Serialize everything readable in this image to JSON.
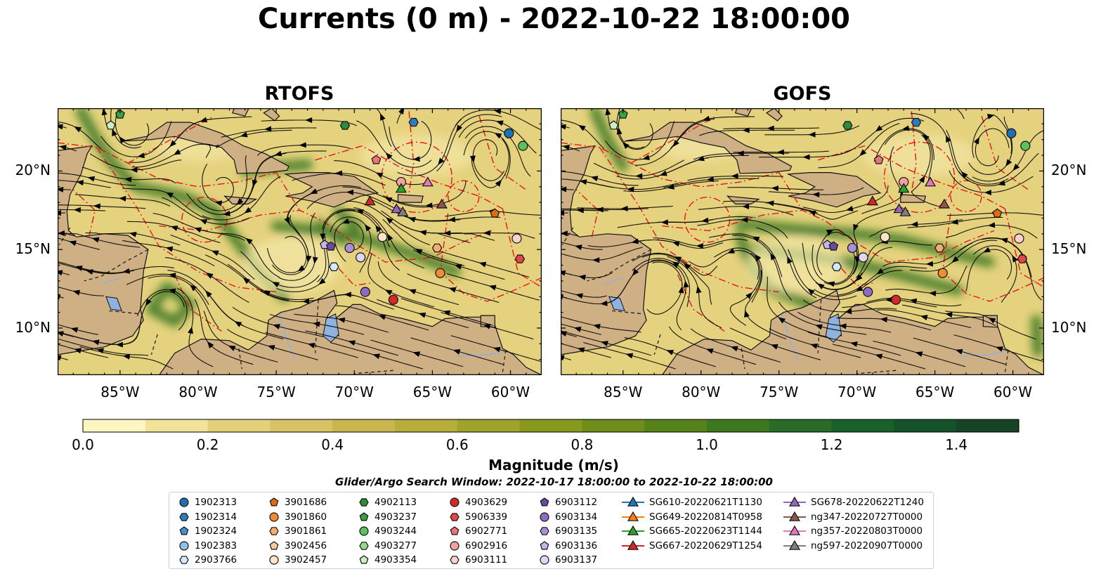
{
  "title": "Currents (0 m) - 2022-10-22 18:00:00",
  "panels": [
    {
      "title": "RTOFS"
    },
    {
      "title": "GOFS"
    }
  ],
  "map": {
    "lon_range": [
      -89,
      -58
    ],
    "lat_range": [
      7,
      24
    ],
    "lon_ticks": [
      "85°W",
      "80°W",
      "75°W",
      "70°W",
      "65°W",
      "60°W"
    ],
    "lat_ticks": [
      "20°N",
      "15°N",
      "10°N"
    ],
    "colors": {
      "land": "#cfb084",
      "water_lake": "#8fb2de",
      "eez_line": "#e8141a",
      "streamline": "#000000",
      "border": "#222222"
    }
  },
  "colorbar": {
    "label": "Magnitude (m/s)",
    "ticks": [
      "0.0",
      "0.2",
      "0.4",
      "0.6",
      "0.8",
      "1.0",
      "1.2",
      "1.4"
    ],
    "min": 0.0,
    "max": 1.5,
    "extend": "max",
    "colors": [
      "#fdf6c3",
      "#f1e39a",
      "#e3d07a",
      "#d7c264",
      "#c9b64e",
      "#b6ad3a",
      "#9fa32a",
      "#88991e",
      "#6f8d1a",
      "#558219",
      "#3d7720",
      "#286c27",
      "#1a602a",
      "#15522a",
      "#174326",
      "#1a3622",
      "#1c2a1c"
    ]
  },
  "search_window": "Glider/Argo Search Window: 2022-10-17 18:00:00 to 2022-10-22 18:00:00",
  "legend": {
    "columns": [
      [
        {
          "label": "1902313",
          "marker": "circle",
          "color": "#1f6fb4"
        },
        {
          "label": "1902314",
          "marker": "hexagon",
          "color": "#2f7bbf"
        },
        {
          "label": "1902324",
          "marker": "pentagon",
          "color": "#4a90cf"
        },
        {
          "label": "1902383",
          "marker": "circle",
          "color": "#8fc0e8"
        },
        {
          "label": "2903766",
          "marker": "hexagon",
          "color": "#d4e8f7"
        }
      ],
      [
        {
          "label": "3901686",
          "marker": "pentagon",
          "color": "#e06a0c"
        },
        {
          "label": "3901860",
          "marker": "circle",
          "color": "#f08c32"
        },
        {
          "label": "3901861",
          "marker": "hexagon",
          "color": "#f6ac6a"
        },
        {
          "label": "3902456",
          "marker": "pentagon",
          "color": "#fbcb9a"
        },
        {
          "label": "3902457",
          "marker": "circle",
          "color": "#fde3c8"
        }
      ],
      [
        {
          "label": "4902113",
          "marker": "hexagon",
          "color": "#2e8b3a"
        },
        {
          "label": "4903237",
          "marker": "pentagon",
          "color": "#3aa047"
        },
        {
          "label": "4903244",
          "marker": "circle",
          "color": "#5cc05f"
        },
        {
          "label": "4903277",
          "marker": "hexagon",
          "color": "#98d98e"
        },
        {
          "label": "4903354",
          "marker": "pentagon",
          "color": "#cdeec4"
        }
      ],
      [
        {
          "label": "4903629",
          "marker": "circle",
          "color": "#d42a25"
        },
        {
          "label": "5906339",
          "marker": "hexagon",
          "color": "#e0474a"
        },
        {
          "label": "6902771",
          "marker": "pentagon",
          "color": "#ec7479"
        },
        {
          "label": "6902916",
          "marker": "circle",
          "color": "#f4a19f"
        },
        {
          "label": "6903111",
          "marker": "hexagon",
          "color": "#fad1cf"
        }
      ],
      [
        {
          "label": "6903112",
          "marker": "pentagon",
          "color": "#6a4a9e"
        },
        {
          "label": "6903134",
          "marker": "circle",
          "color": "#8d6cc2"
        },
        {
          "label": "6903135",
          "marker": "hexagon",
          "color": "#ab8fd8"
        },
        {
          "label": "6903136",
          "marker": "pentagon",
          "color": "#c9b4e9"
        },
        {
          "label": "6903137",
          "marker": "circle",
          "color": "#e3d4f7"
        }
      ],
      [
        {
          "label": "SG610-20220621T1130",
          "marker": "triangle-line",
          "color": "#1f77b4"
        },
        {
          "label": "SG649-20220814T0958",
          "marker": "triangle-line",
          "color": "#ff7f0e"
        },
        {
          "label": "SG665-20220623T1144",
          "marker": "triangle-line",
          "color": "#2ca02c"
        },
        {
          "label": "SG667-20220629T1254",
          "marker": "triangle-line",
          "color": "#d62728"
        }
      ],
      [
        {
          "label": "SG678-20220622T1240",
          "marker": "triangle-line",
          "color": "#9467bd"
        },
        {
          "label": "ng347-20220727T0000",
          "marker": "triangle-line",
          "color": "#8c564b"
        },
        {
          "label": "ng357-20220803T0000",
          "marker": "triangle-line",
          "color": "#e377c2"
        },
        {
          "label": "ng597-20220907T0000",
          "marker": "triangle-line",
          "color": "#7f7f7f"
        }
      ]
    ]
  },
  "markers": [
    {
      "lon": -85.0,
      "lat": 23.6,
      "marker": "pentagon",
      "color": "#3aa047"
    },
    {
      "lon": -85.6,
      "lat": 22.9,
      "marker": "pentagon",
      "color": "#cdeec4"
    },
    {
      "lon": -70.6,
      "lat": 22.9,
      "marker": "hexagon",
      "color": "#2e8b3a"
    },
    {
      "lon": -66.2,
      "lat": 23.1,
      "marker": "hexagon",
      "color": "#2f7bbf"
    },
    {
      "lon": -60.1,
      "lat": 22.4,
      "marker": "circle",
      "color": "#1f6fb4"
    },
    {
      "lon": -59.2,
      "lat": 21.6,
      "marker": "circle",
      "color": "#5cc05f"
    },
    {
      "lon": -68.6,
      "lat": 20.7,
      "marker": "pentagon",
      "color": "#ec7479"
    },
    {
      "lon": -67.0,
      "lat": 19.3,
      "marker": "circle",
      "color": "#f4a19f"
    },
    {
      "lon": -67.0,
      "lat": 18.9,
      "marker": "triangle",
      "color": "#2ca02c"
    },
    {
      "lon": -65.3,
      "lat": 19.3,
      "marker": "triangle",
      "color": "#e377c2"
    },
    {
      "lon": -69.0,
      "lat": 18.1,
      "marker": "triangle",
      "color": "#d62728"
    },
    {
      "lon": -67.3,
      "lat": 17.6,
      "marker": "triangle",
      "color": "#9467bd"
    },
    {
      "lon": -66.9,
      "lat": 17.4,
      "marker": "triangle",
      "color": "#7f7f7f"
    },
    {
      "lon": -64.4,
      "lat": 17.9,
      "marker": "triangle",
      "color": "#8c564b"
    },
    {
      "lon": -61.0,
      "lat": 17.3,
      "marker": "pentagon",
      "color": "#e06a0c"
    },
    {
      "lon": -68.2,
      "lat": 15.8,
      "marker": "circle",
      "color": "#fde3c8"
    },
    {
      "lon": -64.7,
      "lat": 15.1,
      "marker": "hexagon",
      "color": "#f6ac6a"
    },
    {
      "lon": -59.6,
      "lat": 15.7,
      "marker": "circle",
      "color": "#fad1cf"
    },
    {
      "lon": -59.4,
      "lat": 14.4,
      "marker": "hexagon",
      "color": "#e0474a"
    },
    {
      "lon": -71.9,
      "lat": 15.3,
      "marker": "pentagon",
      "color": "#c9b4e9"
    },
    {
      "lon": -71.5,
      "lat": 15.2,
      "marker": "pentagon",
      "color": "#6a4a9e"
    },
    {
      "lon": -70.3,
      "lat": 15.1,
      "marker": "circle",
      "color": "#ab8fd8"
    },
    {
      "lon": -69.6,
      "lat": 14.5,
      "marker": "circle",
      "color": "#e3d4f7"
    },
    {
      "lon": -71.3,
      "lat": 13.9,
      "marker": "hexagon",
      "color": "#d4e8f7"
    },
    {
      "lon": -64.5,
      "lat": 13.5,
      "marker": "circle",
      "color": "#f08c32"
    },
    {
      "lon": -69.3,
      "lat": 12.3,
      "marker": "circle",
      "color": "#8d6cc2"
    },
    {
      "lon": -67.5,
      "lat": 11.8,
      "marker": "circle",
      "color": "#d42a25"
    }
  ]
}
